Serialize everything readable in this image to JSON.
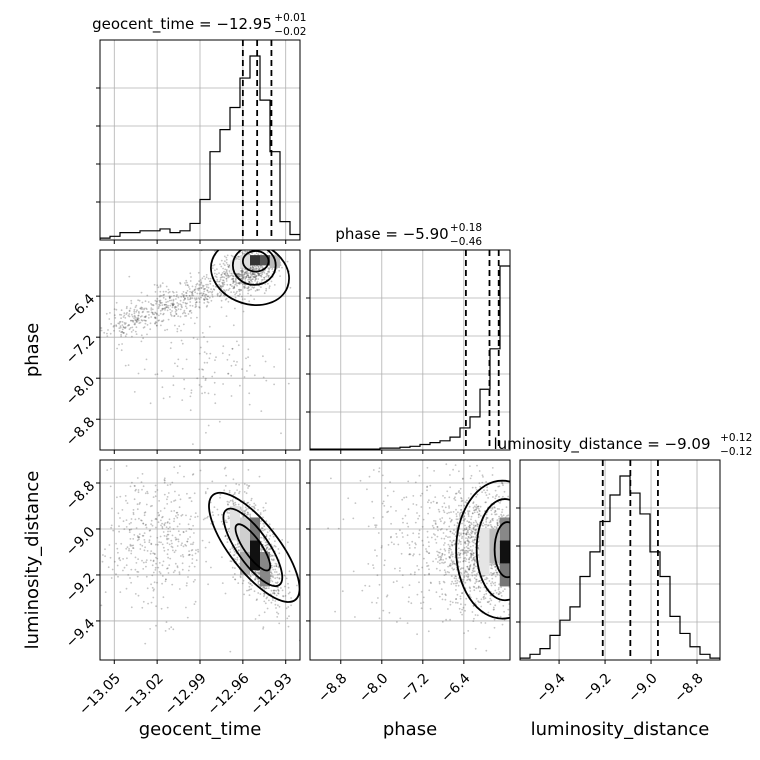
{
  "chart_data": {
    "type": "corner",
    "params": [
      {
        "name": "geocent_time",
        "label": "geocent_time",
        "range": [
          -13.06,
          -12.92
        ],
        "ticks": [
          -13.05,
          -13.02,
          -12.99,
          -12.96,
          -12.93
        ],
        "tick_labels": [
          "−13.05",
          "−13.02",
          "−12.99",
          "−12.96",
          "−12.93"
        ],
        "title_main": "geocent_time = −12.95",
        "title_sup": "+0.01",
        "title_sub": "−0.02",
        "quantiles": [
          -12.96,
          -12.95,
          -12.94
        ]
      },
      {
        "name": "phase",
        "label": "phase",
        "range": [
          -9.4,
          -5.5
        ],
        "ticks": [
          -8.8,
          -8.0,
          -7.2,
          -6.4
        ],
        "tick_labels": [
          "−8.8",
          "−8.0",
          "−7.2",
          "−6.4"
        ],
        "title_main": "phase = −5.90",
        "title_sup": "+0.18",
        "title_sub": "−0.46",
        "quantiles": [
          -6.36,
          -5.9,
          -5.72
        ]
      },
      {
        "name": "luminosity_distance",
        "label": "luminosity_distance",
        "range": [
          -9.57,
          -8.7
        ],
        "ticks": [
          -9.4,
          -9.2,
          -9.0,
          -8.8
        ],
        "tick_labels": [
          "−9.4",
          "−9.2",
          "−9.0",
          "−8.8"
        ],
        "title_main": "luminosity_distance = −9.09",
        "title_sup": "+0.12",
        "title_sub": "−0.12",
        "quantiles": [
          -9.21,
          -9.09,
          -8.97
        ]
      }
    ],
    "histograms": [
      {
        "param": "geocent_time",
        "bin_edges": [
          -13.06,
          -13.053,
          -13.046,
          -13.039,
          -13.032,
          -13.025,
          -13.018,
          -13.011,
          -13.004,
          -12.997,
          -12.99,
          -12.983,
          -12.976,
          -12.969,
          -12.962,
          -12.955,
          -12.948,
          -12.941,
          -12.934,
          -12.927,
          -12.92
        ],
        "counts": [
          1,
          2,
          4,
          4,
          5,
          5,
          6,
          4,
          5,
          9,
          22,
          48,
          60,
          72,
          88,
          100,
          76,
          48,
          10,
          3
        ]
      },
      {
        "param": "phase",
        "bin_edges": [
          -9.4,
          -9.205,
          -9.01,
          -8.815,
          -8.62,
          -8.425,
          -8.23,
          -8.035,
          -7.84,
          -7.645,
          -7.45,
          -7.255,
          -7.06,
          -6.865,
          -6.67,
          -6.475,
          -6.28,
          -6.085,
          -5.89,
          -5.695,
          -5.5
        ],
        "counts": [
          0.5,
          0.5,
          0.5,
          0.5,
          0.5,
          0.5,
          0.5,
          1,
          1,
          1.5,
          2,
          3,
          4,
          5,
          7,
          12,
          18,
          33,
          55,
          100
        ]
      },
      {
        "param": "luminosity_distance",
        "bin_edges": [
          -9.57,
          -9.5265,
          -9.483,
          -9.4395,
          -9.396,
          -9.3525,
          -9.309,
          -9.2655,
          -9.222,
          -9.1785,
          -9.135,
          -9.0915,
          -9.048,
          -9.0045,
          -8.961,
          -8.9175,
          -8.874,
          -8.8305,
          -8.787,
          -8.7435,
          -8.7
        ],
        "counts": [
          1,
          3,
          6,
          13,
          21,
          28,
          44,
          57,
          73,
          87,
          97,
          88,
          77,
          57,
          44,
          23,
          14,
          7,
          3,
          1
        ]
      }
    ],
    "scatter_panels": [
      {
        "x": "geocent_time",
        "y": "phase"
      },
      {
        "x": "geocent_time",
        "y": "luminosity_distance"
      },
      {
        "x": "phase",
        "y": "luminosity_distance"
      }
    ],
    "grid": true
  }
}
